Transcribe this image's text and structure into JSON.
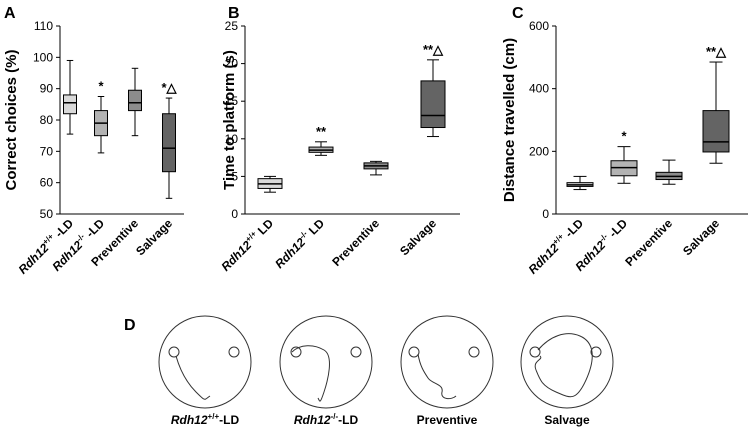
{
  "chart_data": [
    {
      "type": "box",
      "panel": "A",
      "y_label": "Correct choices (%)",
      "categories": [
        "Rdh12+/+ -LD",
        "Rdh12-/- -LD",
        "Preventive",
        "Salvage"
      ],
      "boxes": [
        {
          "whislo": 75.5,
          "q1": 82,
          "med": 85.5,
          "q3": 88,
          "whishi": 99
        },
        {
          "whislo": 69.5,
          "q1": 75,
          "med": 79,
          "q3": 83,
          "whishi": 87.5
        },
        {
          "whislo": 75,
          "q1": 83,
          "med": 85.5,
          "q3": 89.5,
          "whishi": 96.5
        },
        {
          "whislo": 55,
          "q1": 63.5,
          "med": 71,
          "q3": 82,
          "whishi": 87
        }
      ],
      "colors": [
        "#d9d9d9",
        "#b3b3b3",
        "#8c8c8c",
        "#646464"
      ],
      "annotations": [
        null,
        "*",
        null,
        "*△"
      ],
      "ylim": [
        50,
        110
      ],
      "yticks": [
        50,
        60,
        70,
        80,
        90,
        100,
        110
      ]
    },
    {
      "type": "box",
      "panel": "B",
      "y_label": "Time to platform (s)",
      "categories": [
        "Rdh12+/+ LD",
        "Rdh12-/- LD",
        "Preventive",
        "Salvage"
      ],
      "boxes": [
        {
          "whislo": 2.9,
          "q1": 3.4,
          "med": 4,
          "q3": 4.7,
          "whishi": 5
        },
        {
          "whislo": 7.8,
          "q1": 8.2,
          "med": 8.5,
          "q3": 8.9,
          "whishi": 9.6
        },
        {
          "whislo": 5.2,
          "q1": 6,
          "med": 6.4,
          "q3": 6.8,
          "whishi": 7
        },
        {
          "whislo": 10.3,
          "q1": 11.5,
          "med": 13.1,
          "q3": 17.7,
          "whishi": 20.5
        }
      ],
      "colors": [
        "#d9d9d9",
        "#b3b3b3",
        "#8c8c8c",
        "#646464"
      ],
      "annotations": [
        null,
        "**",
        null,
        "**△"
      ],
      "ylim": [
        0,
        25
      ],
      "yticks": [
        0,
        5,
        10,
        15,
        20,
        25
      ]
    },
    {
      "type": "box",
      "panel": "C",
      "y_label": "Distance travelled (cm)",
      "categories": [
        "Rdh12+/+ -LD",
        "Rdh12-/- -LD",
        "Preventive",
        "Salvage"
      ],
      "boxes": [
        {
          "whislo": 78,
          "q1": 88,
          "med": 93,
          "q3": 100,
          "whishi": 120
        },
        {
          "whislo": 98,
          "q1": 122,
          "med": 148,
          "q3": 170,
          "whishi": 215
        },
        {
          "whislo": 95,
          "q1": 110,
          "med": 120,
          "q3": 133,
          "whishi": 172
        },
        {
          "whislo": 162,
          "q1": 198,
          "med": 230,
          "q3": 330,
          "whishi": 485
        }
      ],
      "colors": [
        "#d9d9d9",
        "#b3b3b3",
        "#8c8c8c",
        "#646464"
      ],
      "annotations": [
        null,
        "*",
        null,
        "**△"
      ],
      "ylim": [
        0,
        600
      ],
      "yticks": [
        0,
        200,
        400,
        600
      ]
    }
  ],
  "panel_d": {
    "panel": "D",
    "labels": [
      "Rdh12+/+-LD",
      "Rdh12-/--LD",
      "Preventive",
      "Salvage"
    ]
  }
}
